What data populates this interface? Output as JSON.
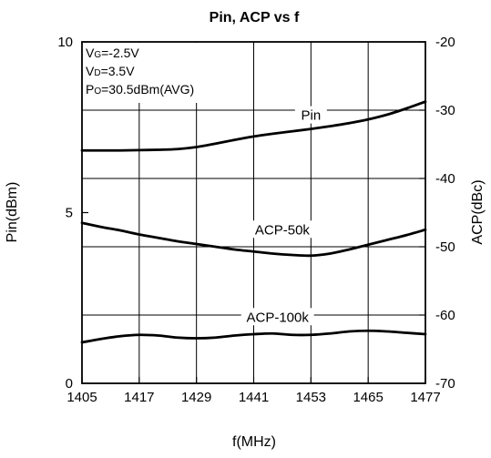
{
  "chart_data": {
    "type": "line",
    "title": "Pin, ACP vs f",
    "xlabel": "f(MHz)",
    "ylabel_left": "Pin(dBm)",
    "ylabel_right": "ACP(dBc)",
    "xlim": [
      1405,
      1477
    ],
    "ylim_left": [
      0,
      10
    ],
    "ylim_right": [
      -70,
      -20
    ],
    "x_ticks": [
      "1405",
      "1417",
      "1429",
      "1441",
      "1453",
      "1465",
      "1477"
    ],
    "y_left_ticks": [
      "0",
      "5",
      "10"
    ],
    "y_right_ticks": [
      "-20",
      "-30",
      "-40",
      "-50",
      "-60",
      "-70"
    ],
    "grid": true,
    "conditions": [
      {
        "prefix": "V",
        "sub": "G",
        "suffix": "=-2.5V"
      },
      {
        "prefix": "V",
        "sub": "D",
        "suffix": "=3.5V"
      },
      {
        "prefix": "P",
        "sub": "O",
        "suffix": "=30.5dBm(AVG)"
      }
    ],
    "series": [
      {
        "name": "Pin",
        "axis": "left",
        "x": [
          1405,
          1409,
          1413,
          1417,
          1421,
          1425,
          1429,
          1433,
          1437,
          1441,
          1445,
          1449,
          1453,
          1457,
          1461,
          1465,
          1469,
          1473,
          1477
        ],
        "y": [
          6.82,
          6.82,
          6.82,
          6.83,
          6.84,
          6.86,
          6.92,
          7.02,
          7.13,
          7.23,
          7.31,
          7.38,
          7.45,
          7.53,
          7.62,
          7.73,
          7.87,
          8.05,
          8.25
        ]
      },
      {
        "name": "ACP-50k",
        "axis": "right",
        "x": [
          1405,
          1409,
          1413,
          1417,
          1421,
          1425,
          1429,
          1433,
          1437,
          1441,
          1445,
          1449,
          1453,
          1457,
          1461,
          1465,
          1469,
          1473,
          1477
        ],
        "y": [
          -46.5,
          -47.1,
          -47.6,
          -48.2,
          -48.7,
          -49.2,
          -49.6,
          -50.0,
          -50.4,
          -50.7,
          -51.0,
          -51.2,
          -51.3,
          -51.0,
          -50.4,
          -49.7,
          -49.0,
          -48.3,
          -47.5
        ]
      },
      {
        "name": "ACP-100k",
        "axis": "right",
        "x": [
          1405,
          1409,
          1413,
          1417,
          1421,
          1425,
          1429,
          1433,
          1437,
          1441,
          1445,
          1449,
          1453,
          1457,
          1461,
          1465,
          1469,
          1473,
          1477
        ],
        "y": [
          -64.0,
          -63.5,
          -63.1,
          -62.9,
          -63.0,
          -63.3,
          -63.4,
          -63.3,
          -63.0,
          -62.8,
          -62.7,
          -62.9,
          -62.9,
          -62.7,
          -62.4,
          -62.3,
          -62.4,
          -62.6,
          -62.8
        ]
      }
    ]
  }
}
